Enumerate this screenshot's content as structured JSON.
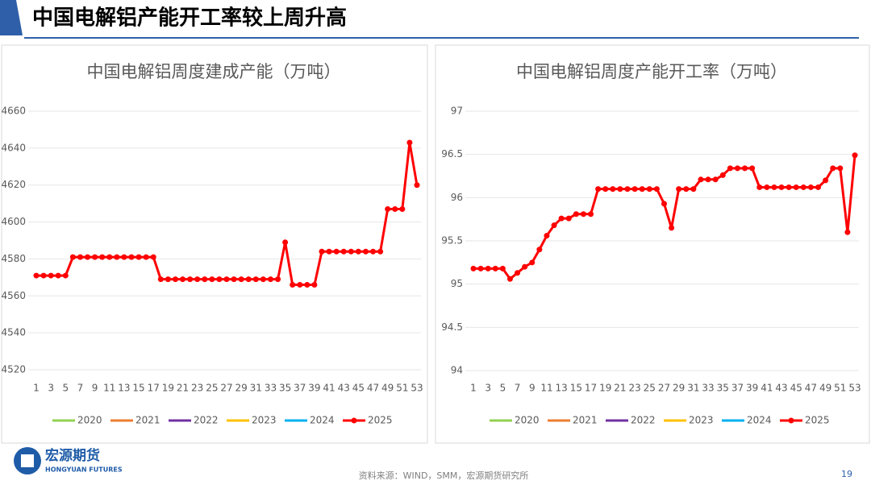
{
  "header": {
    "title": "中国电解铝产能开工率较上周升高"
  },
  "chart_data": [
    {
      "type": "line",
      "title": "中国电解铝周度建成产能（万吨）",
      "categories": [
        1,
        null,
        3,
        null,
        5,
        null,
        7,
        null,
        9,
        null,
        11,
        null,
        13,
        null,
        15,
        null,
        17,
        null,
        19,
        null,
        21,
        null,
        23,
        null,
        25,
        null,
        27,
        null,
        29,
        null,
        31,
        null,
        33,
        null,
        35,
        null,
        37,
        null,
        39,
        null,
        41,
        null,
        43,
        null,
        45,
        null,
        47,
        null,
        49,
        null,
        51,
        null,
        53
      ],
      "series": [
        {
          "name": "2020",
          "color": "#92d050"
        },
        {
          "name": "2021",
          "color": "#ed7d31"
        },
        {
          "name": "2022",
          "color": "#7030a0"
        },
        {
          "name": "2023",
          "color": "#ffc000"
        },
        {
          "name": "2024",
          "color": "#00b0f0"
        },
        {
          "name": "2025",
          "color": "#ff0000",
          "values": [
            4571,
            4571,
            4571,
            4571,
            4571,
            4581,
            4581,
            4581,
            4581,
            4581,
            4581,
            4581,
            4581,
            4581,
            4581,
            4581,
            4581,
            4569,
            4569,
            4569,
            4569,
            4569,
            4569,
            4569,
            4569,
            4569,
            4569,
            4569,
            4569,
            4569,
            4569,
            4569,
            4569,
            4569,
            4589,
            4566,
            4566,
            4566,
            4566,
            4584,
            4584,
            4584,
            4584,
            4584,
            4584,
            4584,
            4584,
            4584,
            4607,
            4607,
            4607,
            4643,
            4620
          ]
        }
      ],
      "ylim": [
        4520,
        4660
      ],
      "yticks": [
        4520,
        4540,
        4560,
        4580,
        4600,
        4620,
        4640,
        4660
      ],
      "grid": true
    },
    {
      "type": "line",
      "title": "中国电解铝周度产能开工率（万吨）",
      "categories": [
        1,
        null,
        3,
        null,
        5,
        null,
        7,
        null,
        9,
        null,
        11,
        null,
        13,
        null,
        15,
        null,
        17,
        null,
        19,
        null,
        21,
        null,
        23,
        null,
        25,
        null,
        27,
        null,
        29,
        null,
        31,
        null,
        33,
        null,
        35,
        null,
        37,
        null,
        39,
        null,
        41,
        null,
        43,
        null,
        45,
        null,
        47,
        null,
        49,
        null,
        51,
        null,
        53
      ],
      "series": [
        {
          "name": "2020",
          "color": "#92d050"
        },
        {
          "name": "2021",
          "color": "#ed7d31"
        },
        {
          "name": "2022",
          "color": "#7030a0"
        },
        {
          "name": "2023",
          "color": "#ffc000"
        },
        {
          "name": "2024",
          "color": "#00b0f0"
        },
        {
          "name": "2025",
          "color": "#ff0000",
          "values": [
            95.18,
            95.18,
            95.18,
            95.18,
            95.18,
            95.06,
            95.13,
            95.2,
            95.25,
            95.4,
            95.56,
            95.68,
            95.76,
            95.76,
            95.81,
            95.81,
            95.81,
            96.1,
            96.1,
            96.1,
            96.1,
            96.1,
            96.1,
            96.1,
            96.1,
            96.1,
            95.93,
            95.65,
            96.1,
            96.1,
            96.1,
            96.21,
            96.21,
            96.21,
            96.26,
            96.34,
            96.34,
            96.34,
            96.34,
            96.12,
            96.12,
            96.12,
            96.12,
            96.12,
            96.12,
            96.12,
            96.12,
            96.12,
            96.2,
            96.34,
            96.34,
            95.6,
            96.49
          ]
        }
      ],
      "ylim": [
        94,
        97
      ],
      "yticks": [
        94,
        94.5,
        95,
        95.5,
        96,
        96.5,
        97
      ],
      "grid": true
    }
  ],
  "footer": {
    "logo_cn": "宏源期货",
    "logo_en": "HONGYUAN FUTURES",
    "source": "资料来源：WIND，SMM，宏源期货研究所",
    "page_number": "19"
  }
}
